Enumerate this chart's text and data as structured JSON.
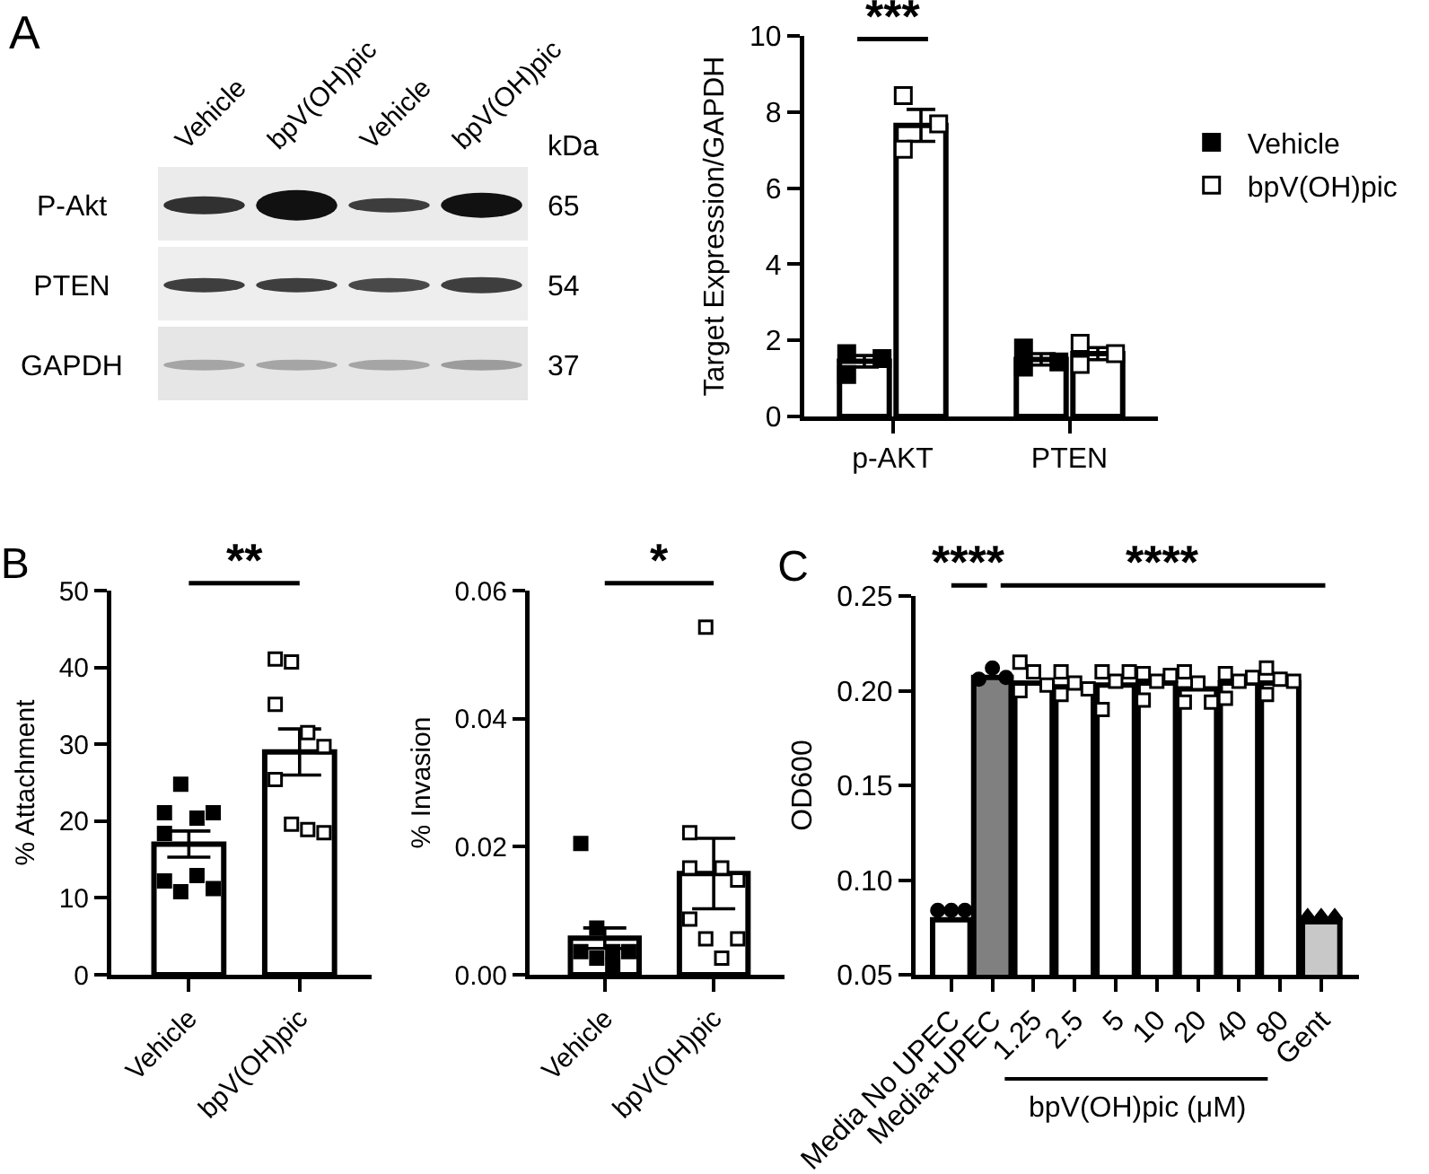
{
  "chart_data": [
    {
      "type": "other",
      "title": "A",
      "categories": [
        "Vehicle",
        "bpV(OH)pic",
        "Vehicle",
        "bpV(OH)pic"
      ],
      "y_categories": [
        "P-Akt",
        "PTEN",
        "GAPDH"
      ],
      "y2_categories": [
        "65",
        "54",
        "37"
      ],
      "y2label": "kDa"
    },
    {
      "type": "bar",
      "ylabel": "Target Expression/GAPDH",
      "categories": [
        "p-AKT",
        "PTEN"
      ],
      "ylim": [
        0,
        10
      ],
      "yticks": [
        0,
        2,
        4,
        6,
        8,
        10
      ],
      "legend": "right",
      "annotations": [
        "***"
      ],
      "series": [
        {
          "type": "bar",
          "color": "#ffffff",
          "values": [
            1.45,
            1.5
          ],
          "errors": [
            0.15,
            0.15
          ]
        },
        {
          "type": "bar",
          "color": "#ffffff",
          "values": [
            7.65,
            1.65
          ],
          "errors": [
            0.42,
            0.16
          ]
        },
        {
          "name": "Vehicle",
          "type": "scatter",
          "marker": "square",
          "color": "#000000",
          "x": [
            "p-AKT",
            "p-AKT",
            "p-AKT",
            "PTEN",
            "PTEN",
            "PTEN"
          ],
          "values": [
            1.65,
            1.52,
            1.1,
            1.8,
            1.43,
            1.3
          ]
        },
        {
          "name": "bpV(OH)pic",
          "type": "scatter",
          "marker": "square",
          "color": "#ffffff",
          "x": [
            "p-AKT",
            "p-AKT",
            "p-AKT",
            "PTEN",
            "PTEN",
            "PTEN"
          ],
          "values": [
            8.43,
            7.69,
            7.02,
            1.92,
            1.65,
            1.37
          ]
        }
      ]
    },
    {
      "type": "bar",
      "title": "B",
      "ylabel": "% Attachment",
      "categories": [
        "Vehicle",
        "bpV(OH)pic"
      ],
      "ylim": [
        0,
        50
      ],
      "yticks": [
        0,
        10,
        20,
        30,
        40,
        50
      ],
      "annotations": [
        "**"
      ],
      "series": [
        {
          "type": "bar",
          "color": "#ffffff",
          "values": [
            17,
            29
          ],
          "errors": [
            1.7,
            3.0
          ]
        },
        {
          "type": "scatter",
          "marker": "square",
          "color": "#000000",
          "x": [
            "Vehicle",
            "Vehicle",
            "Vehicle",
            "Vehicle",
            "Vehicle",
            "Vehicle",
            "Vehicle",
            "Vehicle",
            "Vehicle"
          ],
          "values": [
            21.1,
            24.8,
            20.4,
            21.1,
            12.2,
            10.8,
            12.9,
            11.2,
            18.4
          ]
        },
        {
          "type": "scatter",
          "marker": "square",
          "color": "#ffffff",
          "x": [
            "bpV(OH)pic",
            "bpV(OH)pic",
            "bpV(OH)pic",
            "bpV(OH)pic",
            "bpV(OH)pic",
            "bpV(OH)pic",
            "bpV(OH)pic",
            "bpV(OH)pic",
            "bpV(OH)pic"
          ],
          "values": [
            41.1,
            40.7,
            18.9,
            18.5,
            35.2,
            19.6,
            31.5,
            29.7,
            25.4
          ]
        }
      ]
    },
    {
      "type": "bar",
      "ylabel": "% Invasion",
      "categories": [
        "Vehicle",
        "bpV(OH)pic"
      ],
      "ylim": [
        0,
        0.06
      ],
      "yticks": [
        {
          "value": 0,
          "label": "0.00"
        },
        0.02,
        0.04,
        0.06
      ],
      "annotations": [
        "*"
      ],
      "series": [
        {
          "type": "bar",
          "color": "#ffffff",
          "values": [
            0.0057,
            0.0158
          ],
          "errors": [
            0.0016,
            0.0055
          ]
        },
        {
          "type": "scatter",
          "marker": "square",
          "color": "#000000",
          "x": [
            "Vehicle",
            "Vehicle",
            "Vehicle",
            "Vehicle",
            "Vehicle",
            "Vehicle",
            "Vehicle"
          ],
          "values": [
            0.0036,
            0.0026,
            0.0036,
            0.0036,
            0.0205,
            0.0073,
            0.0015
          ]
        },
        {
          "type": "scatter",
          "marker": "square",
          "color": "#ffffff",
          "x": [
            "bpV(OH)pic",
            "bpV(OH)pic",
            "bpV(OH)pic",
            "bpV(OH)pic",
            "bpV(OH)pic",
            "bpV(OH)pic",
            "bpV(OH)pic",
            "bpV(OH)pic",
            "bpV(OH)pic"
          ],
          "values": [
            0.0167,
            0.0543,
            0.0167,
            0.0056,
            0.0222,
            0.0056,
            0.0026,
            0.0148,
            0.0087
          ]
        }
      ]
    },
    {
      "type": "bar",
      "title": "C",
      "ylabel": "OD600",
      "xlabel": "bpV(OH)pic (μM)",
      "categories": [
        "Media No UPEC",
        "Media+UPEC",
        "1.25",
        "2.5",
        "5",
        "10",
        "20",
        "40",
        "80",
        "Gent"
      ],
      "ylim": [
        0.05,
        0.25
      ],
      "yticks": [
        0.05,
        {
          "value": 0.1,
          "label": "0.10"
        },
        0.15,
        {
          "value": 0.2,
          "label": "0.20"
        },
        0.25
      ],
      "annotations": [
        "****",
        "****"
      ],
      "series": [
        {
          "type": "bar",
          "colors": [
            "#ffffff",
            "#808080",
            "#ffffff",
            "#ffffff",
            "#ffffff",
            "#ffffff",
            "#ffffff",
            "#ffffff",
            "#ffffff",
            "#c8c8c8"
          ],
          "values": [
            0.079,
            0.207,
            0.204,
            0.202,
            0.203,
            0.204,
            0.201,
            0.204,
            0.204,
            0.078
          ]
        },
        {
          "type": "scatter",
          "marker": "circle",
          "color": "#000000",
          "x": [
            "Media No UPEC",
            "Media No UPEC",
            "Media No UPEC",
            "Media+UPEC",
            "Media+UPEC",
            "Media+UPEC"
          ],
          "values": [
            0.084,
            0.084,
            0.084,
            0.206,
            0.212,
            0.207
          ]
        },
        {
          "type": "scatter",
          "marker": "square",
          "color": "#ffffff",
          "x": [
            "1.25",
            "1.25",
            "1.25",
            "1.25",
            "2.5",
            "2.5",
            "2.5",
            "2.5",
            "5",
            "5",
            "5",
            "5",
            "10",
            "10",
            "10",
            "10",
            "20",
            "20",
            "20",
            "20",
            "40",
            "40",
            "40",
            "40",
            "80",
            "80",
            "80",
            "80"
          ],
          "values": [
            0.215,
            0.21,
            0.203,
            0.2,
            0.198,
            0.204,
            0.201,
            0.21,
            0.21,
            0.205,
            0.21,
            0.19,
            0.209,
            0.205,
            0.208,
            0.195,
            0.194,
            0.204,
            0.194,
            0.21,
            0.209,
            0.205,
            0.207,
            0.196,
            0.212,
            0.206,
            0.205,
            0.198
          ]
        },
        {
          "type": "scatter",
          "marker": "triangle",
          "color": "#000000",
          "x": [
            "Gent",
            "Gent",
            "Gent"
          ],
          "values": [
            0.081,
            0.081,
            0.081
          ]
        }
      ]
    }
  ]
}
